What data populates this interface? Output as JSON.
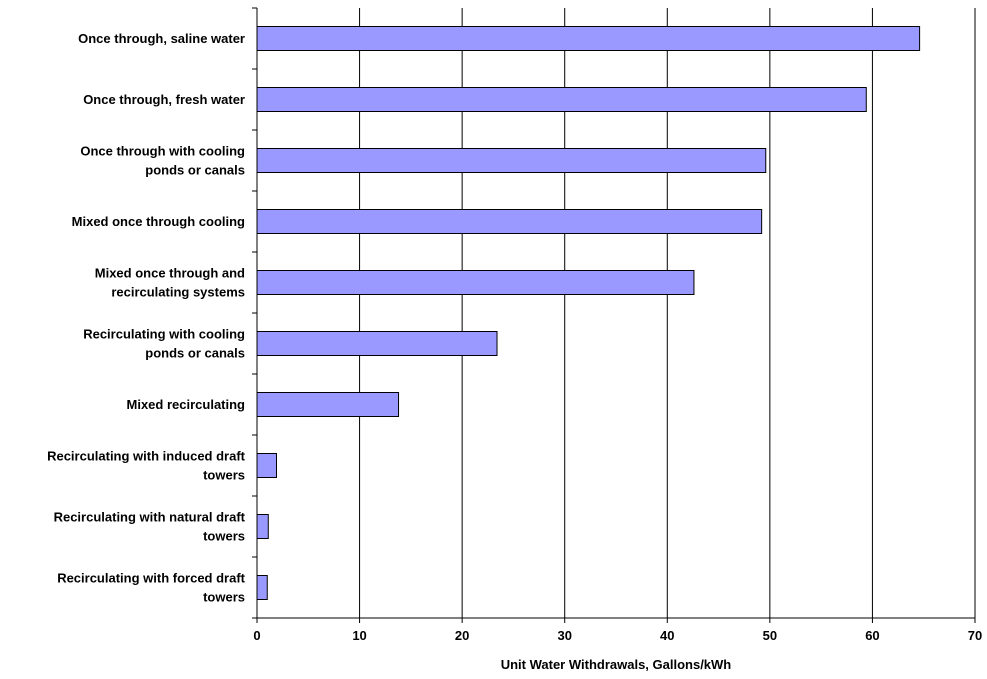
{
  "chart_data": {
    "type": "bar",
    "orientation": "horizontal",
    "title": "",
    "xlabel": "Unit Water Withdrawals, Gallons/kWh",
    "ylabel": "",
    "xlim": [
      0,
      70
    ],
    "xticks": [
      0,
      10,
      20,
      30,
      40,
      50,
      60,
      70
    ],
    "grid": "vertical",
    "legend": "none",
    "bar_color": "#9999FF",
    "bar_edge_color": "#000000",
    "categories": [
      [
        "Once through, saline water"
      ],
      [
        "Once through, fresh water"
      ],
      [
        "Once through with cooling",
        "ponds or canals"
      ],
      [
        "Mixed once through cooling"
      ],
      [
        "Mixed once through and",
        "recirculating systems"
      ],
      [
        "Recirculating with cooling",
        "ponds or canals"
      ],
      [
        "Mixed recirculating"
      ],
      [
        "Recirculating with induced draft",
        "towers"
      ],
      [
        "Recirculating with natural draft",
        "towers"
      ],
      [
        "Recirculating with forced draft",
        "towers"
      ]
    ],
    "values": [
      64.6,
      59.4,
      49.6,
      49.2,
      42.6,
      23.4,
      13.8,
      1.9,
      1.1,
      1.0
    ]
  }
}
